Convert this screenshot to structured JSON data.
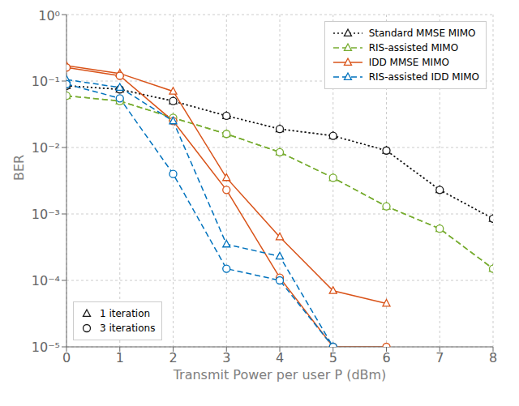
{
  "chart_data": {
    "type": "line",
    "xlabel": "Transmit Power per user P (dBm)",
    "ylabel": "BER",
    "log": "y",
    "xlim": [
      0,
      8
    ],
    "ylim": [
      1e-05,
      1
    ],
    "xticks": [
      0,
      1,
      2,
      3,
      4,
      5,
      6,
      7,
      8
    ],
    "yticks": [
      {
        "value": 1e-05,
        "label": "10⁻⁵"
      },
      {
        "value": 0.0001,
        "label": "10⁻⁴"
      },
      {
        "value": 0.001,
        "label": "10⁻³"
      },
      {
        "value": 0.01,
        "label": "10⁻²"
      },
      {
        "value": 0.1,
        "label": "10⁻¹"
      },
      {
        "value": 1,
        "label": "10⁰"
      }
    ],
    "grid": true,
    "legend": "upper right",
    "series": [
      {
        "name": "Standard MMSE MIMO",
        "color": "#1a1a1a",
        "line_style": "dotted",
        "marker": "triangle",
        "x": [
          0,
          1,
          2,
          3,
          4,
          5,
          6,
          7,
          8
        ],
        "values": [
          0.085,
          0.075,
          0.05,
          0.03,
          0.019,
          0.015,
          0.009,
          0.0023,
          0.00085
        ]
      },
      {
        "name": "Standard MMSE MIMO",
        "color": "#1a1a1a",
        "line_style": "dotted",
        "marker": "circle",
        "x": [
          0,
          1,
          2,
          3,
          4,
          5,
          6,
          7,
          8
        ],
        "values": [
          0.085,
          0.075,
          0.05,
          0.03,
          0.019,
          0.015,
          0.009,
          0.0023,
          0.00085
        ]
      },
      {
        "name": "RIS-assisted MIMO",
        "color": "#77ac30",
        "line_style": "dashed",
        "marker": "triangle",
        "x": [
          0,
          1,
          2,
          3,
          4,
          5,
          6,
          7,
          8
        ],
        "values": [
          0.06,
          0.05,
          0.028,
          0.016,
          0.0085,
          0.0035,
          0.0013,
          0.0006,
          0.00015
        ]
      },
      {
        "name": "RIS-assisted MIMO",
        "color": "#77ac30",
        "line_style": "dashed",
        "marker": "circle",
        "x": [
          0,
          1,
          2,
          3,
          4,
          5,
          6,
          7,
          8
        ],
        "values": [
          0.06,
          0.05,
          0.028,
          0.016,
          0.0085,
          0.0035,
          0.0013,
          0.0006,
          0.00015
        ]
      },
      {
        "name": "IDD MMSE MIMO",
        "color": "#d95319",
        "line_style": "solid",
        "marker": "triangle",
        "x": [
          0,
          1,
          2,
          3,
          4,
          5,
          6
        ],
        "values": [
          0.17,
          0.13,
          0.07,
          0.0035,
          0.00045,
          7e-05,
          4.5e-05
        ]
      },
      {
        "name": "IDD MMSE MIMO",
        "color": "#d95319",
        "line_style": "solid",
        "marker": "circle",
        "x": [
          0,
          1,
          2,
          3,
          4,
          5,
          6
        ],
        "values": [
          0.16,
          0.12,
          0.025,
          0.0023,
          0.00011,
          1e-05,
          1e-05
        ]
      },
      {
        "name": "RIS-assisted IDD MIMO",
        "color": "#0072bd",
        "line_style": "dashed",
        "marker": "triangle",
        "x": [
          0,
          1,
          2,
          3,
          4,
          5
        ],
        "values": [
          0.105,
          0.08,
          0.025,
          0.00035,
          0.00023,
          1e-05
        ]
      },
      {
        "name": "RIS-assisted IDD MIMO",
        "color": "#0072bd",
        "line_style": "dashed",
        "marker": "circle",
        "x": [
          0,
          1,
          2,
          3,
          4,
          5
        ],
        "values": [
          0.09,
          0.055,
          0.004,
          0.00015,
          0.0001,
          1e-05
        ]
      }
    ],
    "marker_legend": {
      "legend": "lower left",
      "entries": [
        {
          "name": "1 iteration",
          "marker": "triangle",
          "color": "#1a1a1a"
        },
        {
          "name": "3 iterations",
          "marker": "circle",
          "color": "#1a1a1a"
        }
      ]
    }
  }
}
